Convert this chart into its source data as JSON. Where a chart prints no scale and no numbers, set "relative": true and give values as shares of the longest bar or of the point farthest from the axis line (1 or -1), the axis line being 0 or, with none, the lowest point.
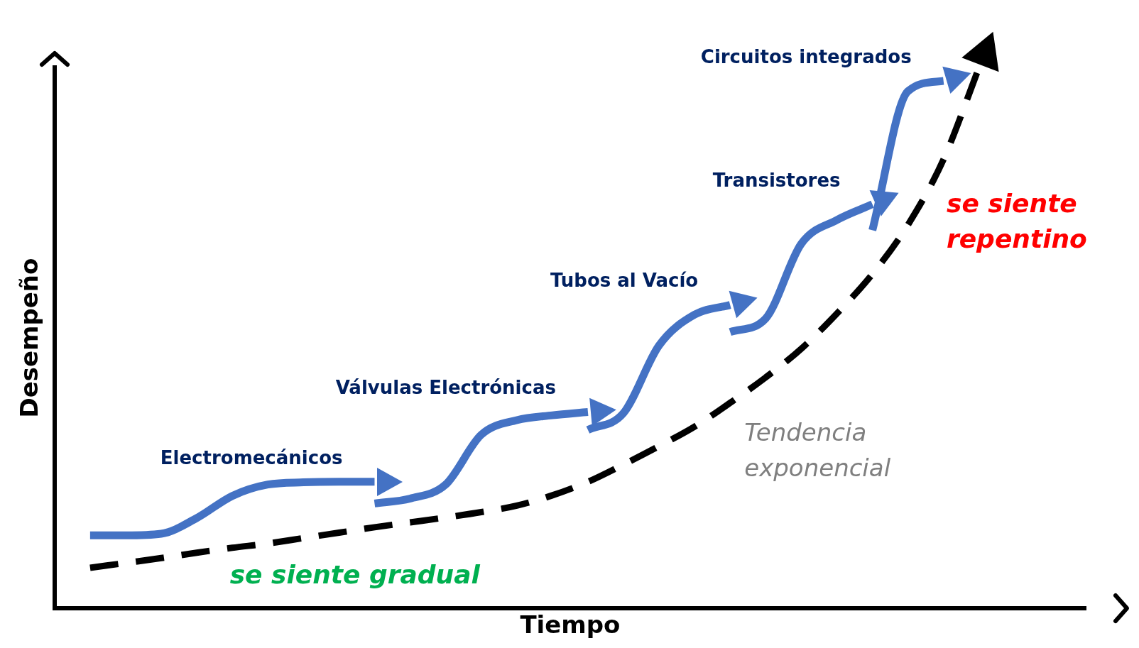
{
  "chart_data": {
    "type": "line",
    "relative": true,
    "marker": "none",
    "xlabel": "Tiempo",
    "ylabel": "Desempeño",
    "categories": [
      null,
      null,
      null,
      null,
      null,
      null,
      null,
      null,
      null,
      null,
      null,
      null,
      null,
      null,
      null,
      null,
      null,
      null,
      null,
      null,
      null,
      null,
      null,
      null,
      null,
      null,
      null,
      null,
      null,
      null
    ],
    "series": [
      {
        "name": "Electromecánicos",
        "color": "#4472c4",
        "line_style": "solid",
        "values": [
          null,
          0.135,
          0.135,
          0.138,
          0.167,
          0.208,
          0.229,
          0.233,
          0.234,
          0.234,
          null,
          null,
          null,
          null,
          null,
          null,
          null,
          null,
          null,
          null,
          null,
          null,
          null,
          null,
          null,
          null,
          null,
          null,
          null,
          null
        ]
      },
      {
        "name": "Válvulas Electrónicas",
        "color": "#4472c4",
        "line_style": "solid",
        "values": [
          null,
          null,
          null,
          null,
          null,
          null,
          null,
          null,
          null,
          0.194,
          0.203,
          0.229,
          0.321,
          0.348,
          0.357,
          0.363,
          null,
          null,
          null,
          null,
          null,
          null,
          null,
          null,
          null,
          null,
          null,
          null,
          null,
          null
        ]
      },
      {
        "name": "Tubos al Vacío",
        "color": "#4472c4",
        "line_style": "solid",
        "values": [
          null,
          null,
          null,
          null,
          null,
          null,
          null,
          null,
          null,
          null,
          null,
          null,
          null,
          null,
          null,
          0.33,
          0.361,
          0.486,
          0.543,
          0.561,
          null,
          null,
          null,
          null,
          null,
          null,
          null,
          null,
          null,
          null
        ]
      },
      {
        "name": "Transistores",
        "color": "#4472c4",
        "line_style": "solid",
        "values": [
          null,
          null,
          null,
          null,
          null,
          null,
          null,
          null,
          null,
          null,
          null,
          null,
          null,
          null,
          null,
          null,
          null,
          null,
          null,
          0.511,
          0.536,
          0.674,
          0.718,
          0.747,
          null,
          null,
          null,
          null,
          null,
          null
        ]
      },
      {
        "name": "Circuitos integrados",
        "color": "#4472c4",
        "line_style": "solid",
        "values": [
          null,
          null,
          null,
          null,
          null,
          null,
          null,
          null,
          null,
          null,
          null,
          null,
          null,
          null,
          null,
          null,
          null,
          null,
          null,
          null,
          null,
          null,
          null,
          0.699,
          0.956,
          0.975,
          null,
          null,
          null,
          null
        ]
      },
      {
        "name": "Tendencia exponencial",
        "color": "#000000",
        "line_style": "dashed",
        "values": [
          null,
          0.075,
          0.084,
          0.093,
          0.103,
          0.112,
          0.12,
          0.13,
          0.14,
          0.15,
          0.159,
          0.168,
          0.178,
          0.19,
          0.209,
          0.234,
          0.266,
          0.3,
          0.336,
          0.38,
          0.427,
          0.48,
          0.545,
          0.618,
          0.709,
          0.83,
          1,
          null,
          null,
          null
        ]
      }
    ],
    "annotations": [
      "se siente gradual",
      "se siente repentino"
    ]
  }
}
